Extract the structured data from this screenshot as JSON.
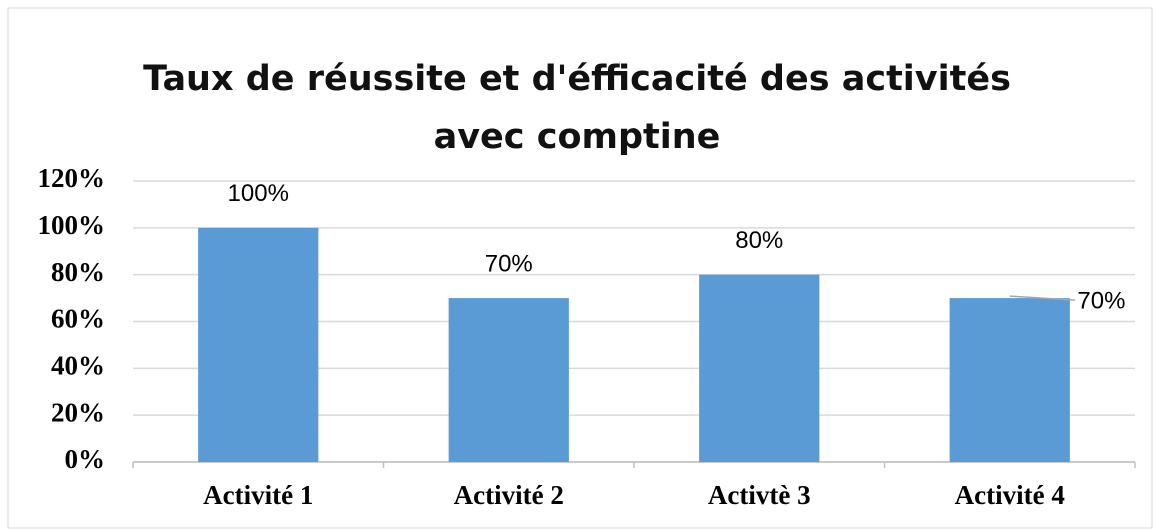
{
  "chart_data": {
    "type": "bar",
    "title": "Taux de réussite et d'éfficacité des activités avec comptine",
    "categories": [
      "Activité 1",
      "Activité 2",
      "Activtè 3",
      "Activité 4"
    ],
    "values": [
      100,
      70,
      80,
      70
    ],
    "value_labels": [
      "100%",
      "70%",
      "80%",
      "70%"
    ],
    "color": "#5b9bd5",
    "ylim": [
      0,
      120
    ],
    "yticks": [
      {
        "value": 0,
        "label": "0%"
      },
      {
        "value": 20,
        "label": "20%"
      },
      {
        "value": 40,
        "label": "40%"
      },
      {
        "value": 60,
        "label": "60%"
      },
      {
        "value": 80,
        "label": "80%"
      },
      {
        "value": 100,
        "label": "100%"
      },
      {
        "value": 120,
        "label": "120%"
      }
    ],
    "grid": true
  }
}
